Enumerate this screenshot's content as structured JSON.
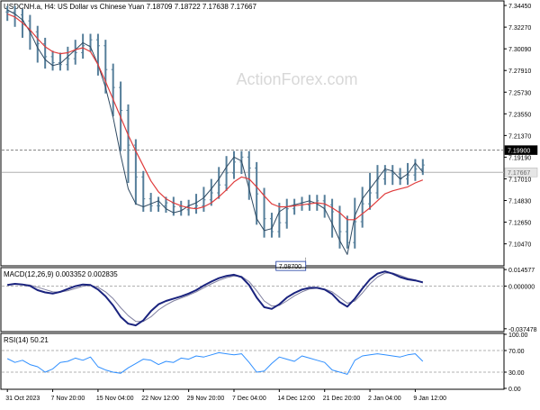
{
  "chart_data": [
    {
      "type": "bar",
      "title": "USDCNH.a, H4:  US Dollar vs Chinese Yuan  7.18709 7.18722 7.17638 7.17667",
      "watermark": "ActionForex.com",
      "ylim": [
        7.0835,
        7.3482
      ],
      "y_ticks": [
        "7.34450",
        "7.32270",
        "7.30090",
        "7.27910",
        "7.25730",
        "7.23550",
        "7.21370",
        "7.19190",
        "7.17010",
        "7.14830",
        "7.12650",
        "7.10470"
      ],
      "reference_lines": [
        {
          "value": 7.199,
          "label": "7.19900",
          "style": "dashed"
        },
        {
          "value": 7.17667,
          "label": "7.17667",
          "style": "solid"
        }
      ],
      "annotations": [
        {
          "x": 39.5,
          "value": 7.087,
          "label": "7.08700"
        }
      ],
      "ohlc_centers": [
        7.338,
        7.335,
        7.329,
        7.318,
        7.306,
        7.293,
        7.287,
        7.285,
        7.291,
        7.297,
        7.304,
        7.31,
        7.304,
        7.28,
        7.262,
        7.239,
        7.204,
        7.172,
        7.15,
        7.143,
        7.143,
        7.146,
        7.142,
        7.139,
        7.141,
        7.143,
        7.149,
        7.156,
        7.164,
        7.176,
        7.187,
        7.192,
        7.181,
        7.155,
        7.13,
        7.117,
        7.126,
        7.14,
        7.144,
        7.144,
        7.146,
        7.148,
        7.144,
        7.137,
        7.117,
        7.106,
        7.127,
        7.145,
        7.156,
        7.17,
        7.178,
        7.175,
        7.17,
        7.174,
        7.18,
        7.184
      ],
      "series": [
        {
          "name": "",
          "values": [
            7.34,
            7.336,
            7.33,
            7.318,
            7.302,
            7.29,
            7.284,
            7.286,
            7.293,
            7.3,
            7.307,
            7.303,
            7.285,
            7.262,
            7.232,
            7.194,
            7.16,
            7.145,
            7.142,
            7.145,
            7.148,
            7.14,
            7.136,
            7.138,
            7.143,
            7.146,
            7.151,
            7.16,
            7.17,
            7.182,
            7.192,
            7.188,
            7.16,
            7.13,
            7.118,
            7.12,
            7.137,
            7.142,
            7.144,
            7.146,
            7.148,
            7.145,
            7.14,
            7.125,
            7.108,
            7.094,
            7.133,
            7.15,
            7.16,
            7.17,
            7.18,
            7.178,
            7.17,
            7.175,
            7.186,
            7.177
          ]
        },
        {
          "name": "",
          "values": [
            7.336,
            7.333,
            7.327,
            7.32,
            7.311,
            7.303,
            7.298,
            7.296,
            7.297,
            7.3,
            7.302,
            7.298,
            7.285,
            7.268,
            7.25,
            7.232,
            7.214,
            7.198,
            7.183,
            7.168,
            7.157,
            7.15,
            7.146,
            7.143,
            7.141,
            7.14,
            7.142,
            7.146,
            7.152,
            7.159,
            7.167,
            7.172,
            7.17,
            7.162,
            7.153,
            7.145,
            7.142,
            7.142,
            7.143,
            7.144,
            7.145,
            7.146,
            7.145,
            7.141,
            7.136,
            7.129,
            7.129,
            7.135,
            7.141,
            7.148,
            7.155,
            7.158,
            7.16,
            7.162,
            7.166,
            7.169
          ]
        }
      ]
    },
    {
      "type": "line",
      "title": "MACD(12,26,9) 0.003352 0.002835",
      "ylim": [
        -0.0392,
        0.0155
      ],
      "y_ticks": [
        "0.014577",
        "0.000000",
        "-0.037478"
      ],
      "zero_line": true,
      "series": [
        {
          "name": "",
          "values": [
            0.001,
            0.002,
            0.0015,
            0.0002,
            -0.0035,
            -0.0055,
            -0.0065,
            -0.005,
            -0.0025,
            0.0,
            0.0015,
            0.001,
            -0.003,
            -0.009,
            -0.017,
            -0.027,
            -0.033,
            -0.0345,
            -0.03,
            -0.022,
            -0.016,
            -0.013,
            -0.011,
            -0.009,
            -0.0065,
            -0.0035,
            0.0005,
            0.004,
            0.007,
            0.009,
            0.01,
            0.008,
            0.001,
            -0.01,
            -0.0185,
            -0.02,
            -0.016,
            -0.01,
            -0.006,
            -0.003,
            -0.0015,
            -0.0015,
            -0.003,
            -0.007,
            -0.014,
            -0.018,
            -0.011,
            -0.002,
            0.006,
            0.011,
            0.013,
            0.011,
            0.008,
            0.006,
            0.005,
            0.0034
          ]
        },
        {
          "name": "",
          "values": [
            0.0015,
            0.0017,
            0.0016,
            0.001,
            -0.001,
            -0.003,
            -0.005,
            -0.0052,
            -0.004,
            -0.002,
            0.0,
            0.0008,
            -0.001,
            -0.005,
            -0.011,
            -0.019,
            -0.026,
            -0.031,
            -0.031,
            -0.027,
            -0.021,
            -0.0165,
            -0.013,
            -0.0105,
            -0.008,
            -0.005,
            -0.0015,
            0.002,
            0.005,
            0.0075,
            0.009,
            0.0085,
            0.004,
            -0.004,
            -0.013,
            -0.0175,
            -0.017,
            -0.013,
            -0.0085,
            -0.005,
            -0.0025,
            -0.0018,
            -0.0025,
            -0.005,
            -0.01,
            -0.015,
            -0.013,
            -0.006,
            0.002,
            0.008,
            0.0115,
            0.0115,
            0.0095,
            0.007,
            0.0055,
            0.0028
          ]
        }
      ]
    },
    {
      "type": "line",
      "title": "RSI(14) 50.21",
      "ylim": [
        0,
        100
      ],
      "y_ticks": [
        "100.00",
        "70.00",
        "30.00",
        "0.00"
      ],
      "levels": [
        70,
        30
      ],
      "series": [
        {
          "name": "",
          "values": [
            55,
            48,
            52,
            44,
            40,
            30,
            36,
            48,
            50,
            56,
            52,
            58,
            40,
            34,
            30,
            28,
            38,
            46,
            54,
            52,
            44,
            50,
            48,
            56,
            54,
            60,
            58,
            62,
            66,
            64,
            62,
            64,
            48,
            30,
            32,
            46,
            58,
            54,
            50,
            60,
            56,
            52,
            48,
            34,
            30,
            26,
            52,
            60,
            62,
            64,
            62,
            60,
            58,
            62,
            64,
            50
          ]
        }
      ]
    }
  ],
  "x_axis": {
    "ticks": [
      "31 Oct 2023",
      "7 Nov 20:00",
      "15 Nov 04:00",
      "22 Nov 12:00",
      "29 Nov 20:00",
      "7 Dec 04:00",
      "14 Dec 12:00",
      "21 Dec 20:00",
      "2 Jan 04:00",
      "9 Jan 12:00"
    ],
    "tick_positions": [
      0,
      6,
      12,
      18,
      24,
      30,
      36,
      42,
      48,
      54
    ]
  },
  "colors": {
    "background": "#ffffff",
    "axis": "#000000",
    "grid": "#c8c8c8",
    "bars": "#557e9a",
    "ma_fast": "#2f4a62",
    "ma_slow": "#e03c3c",
    "macd": "#1a237e",
    "signal": "#8080a0",
    "rsi": "#2f8fff",
    "watermark": "#d8d8d8"
  }
}
